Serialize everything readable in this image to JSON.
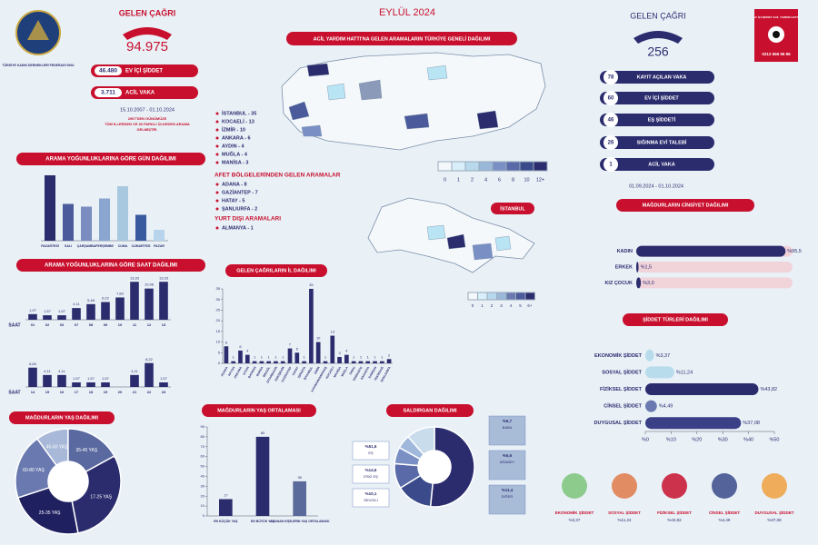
{
  "logo_left": "TÜRKİYE KADIN DERNEKLERİ FEDERASYONU",
  "left_stats": {
    "title": "GELEN ÇAĞRI",
    "total": "94.975",
    "items": [
      {
        "value": "46.480",
        "label": "EV İÇİ ŞİDDET"
      },
      {
        "value": "3.711",
        "label": "ACİL VAKA"
      }
    ],
    "period": "15.10.2007 - 01.10.2024",
    "note": [
      "2007'DEN GÜNÜMÜZE",
      "TÜM İLLERDEN VE 30 FARKLI ÜLKEDEN ARAMA",
      "GELMİŞTİR."
    ]
  },
  "header": {
    "title": "EYLÜL 2024"
  },
  "map": {
    "title": "ACİL YARDIM HATTI'NA GELEN ARAMALARIN TÜRKİYE GENELİ DAĞILIMI",
    "legend": [
      0,
      1,
      2,
      4,
      6,
      8,
      10,
      "12+"
    ]
  },
  "istanbul_map": {
    "title": "İSTANBUL",
    "legend": [
      0,
      1,
      2,
      3,
      4,
      5,
      "6+"
    ]
  },
  "city_list": [
    "İSTANBUL - 35",
    "KOCAELİ - 13",
    "İZMİR - 10",
    "ANKARA - 6",
    "AYDIN - 4",
    "MUĞLA - 4",
    "MANİSA - 3"
  ],
  "disaster": {
    "title": "AFET BÖLGELERİNDEN GELEN ARAMALAR",
    "items": [
      "ADANA - 8",
      "GAZİANTEP - 7",
      "HATAY - 5",
      "ŞANLIURFA - 2"
    ]
  },
  "abroad": {
    "title": "YURT DIŞI ARAMALARI",
    "items": [
      "ALMANYA - 1"
    ]
  },
  "right_stats": {
    "title": "GELEN ÇAĞRI",
    "total": "256",
    "items": [
      {
        "value": "78",
        "label": "KAYIT AÇILAN VAKA"
      },
      {
        "value": "60",
        "label": "EV İÇİ ŞİDDET"
      },
      {
        "value": "46",
        "label": "EŞ ŞİDDETİ"
      },
      {
        "value": "26",
        "label": "SIĞINMA EVİ TALEBİ"
      },
      {
        "value": "1",
        "label": "ACİL VAKA"
      }
    ],
    "period": "01.09.2024 - 01.10.2024"
  },
  "logo_right": {
    "text": "EV İÇİ ŞİDDET ACİL YARDIM HATTI",
    "phone": "0212 656 96 96"
  },
  "chart_data": [
    {
      "type": "bar",
      "title": "ARAMA YOĞUNLUKLARINA GÖRE GÜN DAĞILIMI",
      "categories": [
        "PAZARTESİ",
        "SALI",
        "ÇARŞAMBA",
        "PERŞEMBE",
        "CUMA",
        "CUMARTESİ",
        "PAZAR"
      ],
      "values": [
        48,
        27,
        25,
        31,
        40,
        19,
        8
      ],
      "colors": [
        "#2b2c6e",
        "#4a5a9a",
        "#7a8cc0",
        "#8aa6d0",
        "#a8c8e0",
        "#3a5aa0",
        "#b8d4ec"
      ],
      "ylim": [
        0,
        50
      ]
    },
    {
      "type": "bar",
      "title": "ARAMA YOĞUNLUKLARINA GÖRE SAAT DAĞILIMI",
      "xlabel": "SAAT",
      "categories": [
        "01",
        "02",
        "03",
        "07",
        "08",
        "09",
        "10",
        "11",
        "12",
        "13",
        "14",
        "15",
        "16",
        "17",
        "18",
        "19",
        "20",
        "21",
        "22",
        "23"
      ],
      "values": [
        1.97,
        1.57,
        1.57,
        4.11,
        5.48,
        6.22,
        7.83,
        13.33,
        10.96,
        13.33,
        6.65,
        4.11,
        4.11,
        1.57,
        1.57,
        1.57,
        null,
        4.11,
        8.22,
        1.57
      ],
      "value_labels": [
        "1,97",
        "1,57",
        "1,57",
        "4,11",
        "5,48",
        "6,22",
        "7,83",
        "13,33",
        "10,96",
        "13,33",
        "6,65",
        "4,11",
        "4,11",
        "1,57",
        "1,57",
        "1,57",
        null,
        "4,11",
        "8,22",
        "1,57"
      ],
      "color": "#2b2c6e",
      "ylim": [
        0,
        15
      ]
    },
    {
      "type": "bar",
      "title": "GELEN ÇAĞRILARIN İL DAĞILIMI",
      "categories": [
        "ADANA",
        "AFYON",
        "ANKARA",
        "AYDIN",
        "BATMAN",
        "BURSA",
        "BİNGÖL",
        "DİYARBAKIR",
        "ESKİŞEHİR",
        "GAZİANTEP",
        "HATAY",
        "ISPARTA",
        "İSTANBUL",
        "İZMİR",
        "KAHRAMANMARAŞ",
        "KOCAELİ",
        "MANİSA",
        "MUĞLA",
        "ORDU",
        "OSMANİYE",
        "SAKARYA",
        "SAMSUN",
        "TEKİRDAĞ",
        "ŞANLIURFA"
      ],
      "values": [
        8,
        1,
        6,
        4,
        1,
        1,
        1,
        1,
        1,
        7,
        5,
        1,
        35,
        10,
        1,
        13,
        3,
        4,
        1,
        1,
        1,
        1,
        1,
        2
      ],
      "color": "#2b2c6e",
      "ylim": [
        0,
        35
      ],
      "yticks": [
        0,
        5,
        10,
        15,
        20,
        25,
        30,
        35
      ]
    },
    {
      "type": "hbar",
      "title": "MAĞDURLARIN CİNSİYET DAĞILIMI",
      "categories": [
        "KADIN",
        "ERKEK",
        "KIZ ÇOCUK"
      ],
      "values": [
        95.5,
        1.5,
        3.0
      ],
      "value_labels": [
        "%95,5",
        "%1,5",
        "%3,0"
      ],
      "color": "#2b2c6e",
      "xlim": [
        0,
        100
      ]
    },
    {
      "type": "hbar",
      "title": "ŞİDDET TÜRLERİ DAĞILIMI",
      "categories": [
        "EKONOMİK ŞİDDET",
        "SOSYAL ŞİDDET",
        "FİZİKSEL ŞİDDET",
        "CİNSEL ŞİDDET",
        "DUYGUSAL ŞİDDET"
      ],
      "values": [
        3.37,
        11.24,
        43.82,
        4.49,
        37.08
      ],
      "value_labels": [
        "%3,37",
        "%11,24",
        "%43,82",
        "%4,49",
        "%37,08"
      ],
      "colors": [
        "#b8dcec",
        "#b8dcec",
        "#2b2c6e",
        "#6a7ab0",
        "#3a3f86"
      ],
      "xlim": [
        0,
        50
      ],
      "xticks": [
        {
          "value": 0,
          "label": "%0"
        },
        {
          "value": 10,
          "label": "%10"
        },
        {
          "value": 20,
          "label": "%20"
        },
        {
          "value": 30,
          "label": "%30"
        },
        {
          "value": 40,
          "label": "%40"
        },
        {
          "value": 50,
          "label": "%50"
        }
      ]
    },
    {
      "type": "pie",
      "title": "MAĞDURLARIN YAŞ DAĞILIMI",
      "categories": [
        "45-60 YAŞ",
        "35-45 YAŞ",
        "17-25 YAŞ",
        "25-35 YAŞ",
        "60-80 YAŞ"
      ],
      "values": [
        10,
        17,
        30,
        23,
        20
      ],
      "colors": [
        "#a8b8d8",
        "#5a6aa0",
        "#2b2c6e",
        "#1f2060",
        "#6a7ab0"
      ]
    },
    {
      "type": "bar",
      "title": "MAĞDURLARIN YAŞ ORTALAMASI",
      "categories": [
        "EN KÜÇÜK YAŞ",
        "EN BÜYÜK YAŞ",
        "ARANAN KİŞİLERİN YAŞ ORTALAMASI"
      ],
      "values": [
        17,
        80,
        35
      ],
      "colors": [
        "#2b2c6e",
        "#2b2c6e",
        "#5a6a9a"
      ],
      "ylim": [
        0,
        90
      ],
      "yticks": [
        0,
        10,
        20,
        30,
        40,
        50,
        60,
        70,
        80,
        90
      ]
    },
    {
      "type": "pie",
      "title": "SALDIRGAN DAĞILIMI",
      "categories": [
        "EŞ",
        "ESKİ EŞ",
        "SEVGİLİ",
        "BABA",
        "AĞABEY",
        "DİĞER"
      ],
      "values": [
        51.6,
        14.6,
        10.1,
        6.7,
        5.6,
        11.4
      ],
      "value_labels": [
        "%51,6",
        "%14,6",
        "%10,1",
        "%6,7",
        "%5,6",
        "%11,4"
      ],
      "colors": [
        "#2b2c6e",
        "#3a4a8a",
        "#5a6aa8",
        "#7a90c4",
        "#a0b8dc",
        "#c8dcec"
      ]
    }
  ]
}
